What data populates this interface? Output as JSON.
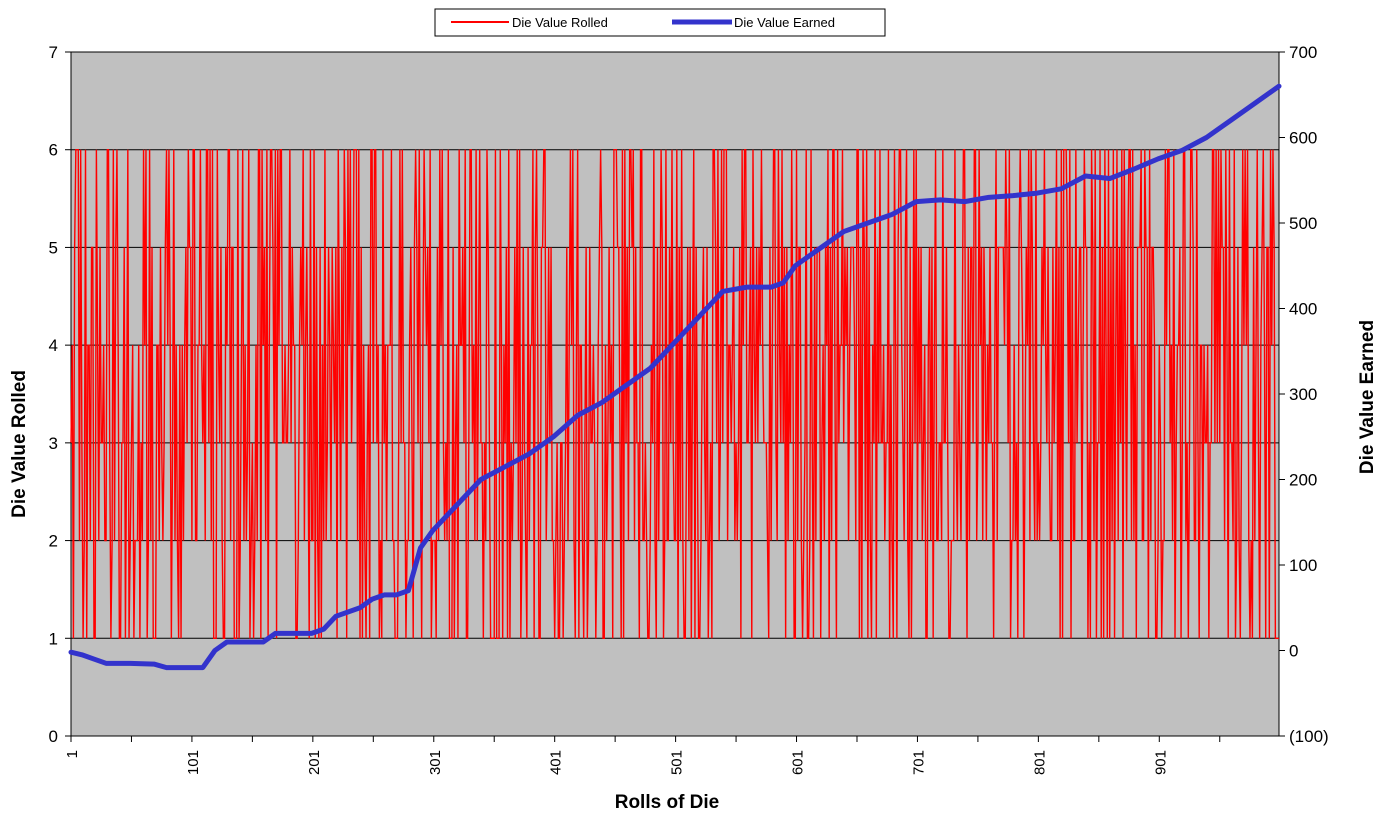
{
  "chart_data": {
    "type": "line",
    "title": "",
    "xlabel": "Rolls of Die",
    "ylabel": "Die Value Rolled",
    "y2label": "Die Value Earned",
    "xlim": [
      1,
      1000
    ],
    "ylim": [
      0,
      7
    ],
    "y2lim": [
      -100,
      700
    ],
    "grid": true,
    "legend_position": "top",
    "plot_background": "#c0c0c0",
    "x_ticks": [
      "1",
      "101",
      "201",
      "301",
      "401",
      "501",
      "601",
      "701",
      "801",
      "901"
    ],
    "y_ticks": [
      "0",
      "1",
      "2",
      "3",
      "4",
      "5",
      "6",
      "7"
    ],
    "y2_ticks": [
      "(100)",
      "0",
      "100",
      "200",
      "300",
      "400",
      "500",
      "600",
      "700"
    ],
    "y2_negative_color": "#ff0000",
    "legend": [
      "Die Value Rolled",
      "Die Value Earned"
    ],
    "series": [
      {
        "name": "Die Value Rolled",
        "axis": "left",
        "color": "#ff0000",
        "note_values": "random integer rolls from 1 to 6, one per roll",
        "values": [
          3,
          6,
          1,
          5,
          2,
          6,
          4,
          1,
          6,
          3,
          5,
          2,
          6,
          1,
          4,
          6,
          2,
          5,
          3,
          6,
          1,
          6,
          4,
          2,
          5,
          3,
          6,
          1,
          5,
          2,
          4,
          6,
          3,
          1,
          5,
          6,
          2,
          4,
          6,
          3,
          5,
          1,
          6,
          2,
          4,
          5,
          3,
          6,
          1,
          2
        ]
      },
      {
        "name": "Die Value Earned",
        "axis": "right",
        "color": "#3333cc",
        "x": [
          1,
          10,
          20,
          30,
          50,
          70,
          80,
          95,
          110,
          120,
          130,
          140,
          160,
          170,
          200,
          210,
          220,
          240,
          250,
          260,
          270,
          280,
          290,
          300,
          320,
          340,
          360,
          380,
          400,
          420,
          440,
          460,
          480,
          500,
          520,
          540,
          560,
          580,
          590,
          600,
          620,
          640,
          660,
          680,
          700,
          720,
          740,
          760,
          780,
          800,
          820,
          840,
          860,
          880,
          900,
          920,
          940,
          960,
          980,
          1000
        ],
        "values": [
          -2,
          -5,
          -10,
          -15,
          -15,
          -16,
          -20,
          -20,
          -20,
          0,
          10,
          10,
          10,
          20,
          20,
          25,
          40,
          50,
          60,
          65,
          65,
          70,
          120,
          140,
          170,
          200,
          215,
          230,
          250,
          275,
          290,
          310,
          330,
          360,
          390,
          420,
          425,
          425,
          430,
          450,
          470,
          490,
          500,
          510,
          525,
          527,
          525,
          530,
          532,
          535,
          540,
          555,
          552,
          563,
          575,
          585,
          600,
          620,
          640,
          660
        ]
      }
    ]
  }
}
